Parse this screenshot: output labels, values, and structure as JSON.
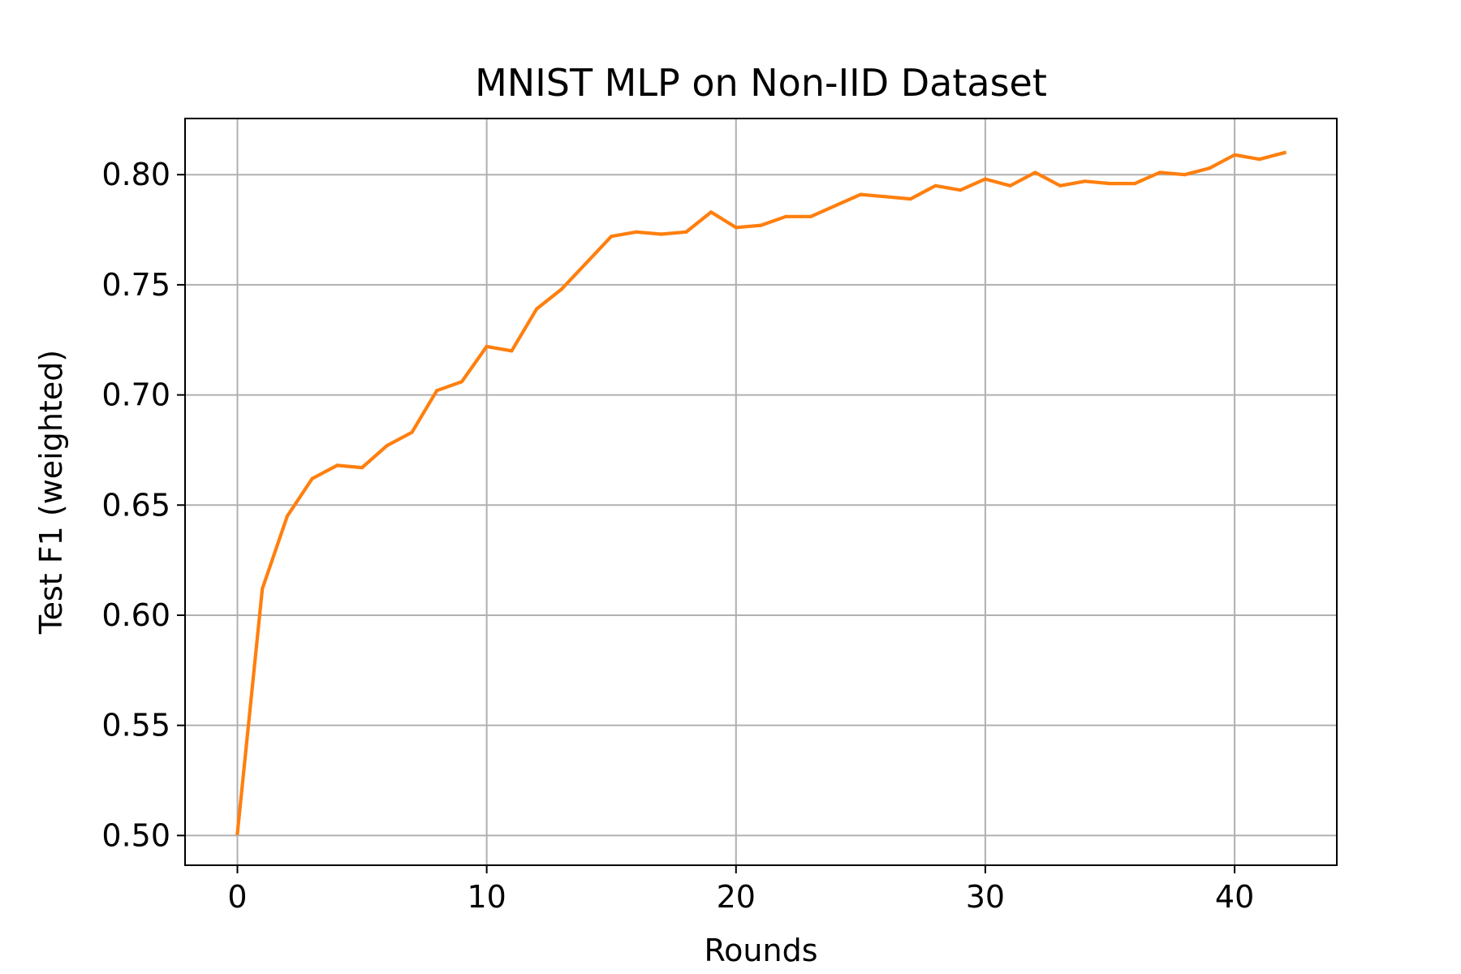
{
  "chart_data": {
    "type": "line",
    "title": "MNIST MLP on Non-IID Dataset",
    "xlabel": "Rounds",
    "ylabel": "Test F1 (weighted)",
    "xlim": [
      -2.1,
      44.1
    ],
    "ylim": [
      0.4865,
      0.8255
    ],
    "grid": true,
    "x_ticks": [
      0,
      10,
      20,
      30,
      40
    ],
    "x_tick_labels": [
      "0",
      "10",
      "20",
      "30",
      "40"
    ],
    "y_ticks": [
      0.5,
      0.55,
      0.6,
      0.65,
      0.7,
      0.75,
      0.8
    ],
    "y_tick_labels": [
      "0.50",
      "0.55",
      "0.60",
      "0.65",
      "0.70",
      "0.75",
      "0.80"
    ],
    "series": [
      {
        "color": "#ff7f0e",
        "x": [
          0,
          1,
          2,
          3,
          4,
          5,
          6,
          7,
          8,
          9,
          10,
          11,
          12,
          13,
          14,
          15,
          16,
          17,
          18,
          19,
          20,
          21,
          22,
          23,
          24,
          25,
          26,
          27,
          28,
          29,
          30,
          31,
          32,
          33,
          34,
          35,
          36,
          37,
          38,
          39,
          40,
          41,
          42
        ],
        "y": [
          0.501,
          0.612,
          0.645,
          0.662,
          0.668,
          0.667,
          0.677,
          0.683,
          0.702,
          0.706,
          0.722,
          0.72,
          0.739,
          0.748,
          0.76,
          0.772,
          0.774,
          0.773,
          0.774,
          0.783,
          0.776,
          0.777,
          0.781,
          0.781,
          0.786,
          0.791,
          0.79,
          0.789,
          0.795,
          0.793,
          0.798,
          0.795,
          0.801,
          0.795,
          0.797,
          0.796,
          0.796,
          0.801,
          0.8,
          0.803,
          0.809,
          0.807,
          0.81
        ]
      }
    ]
  }
}
